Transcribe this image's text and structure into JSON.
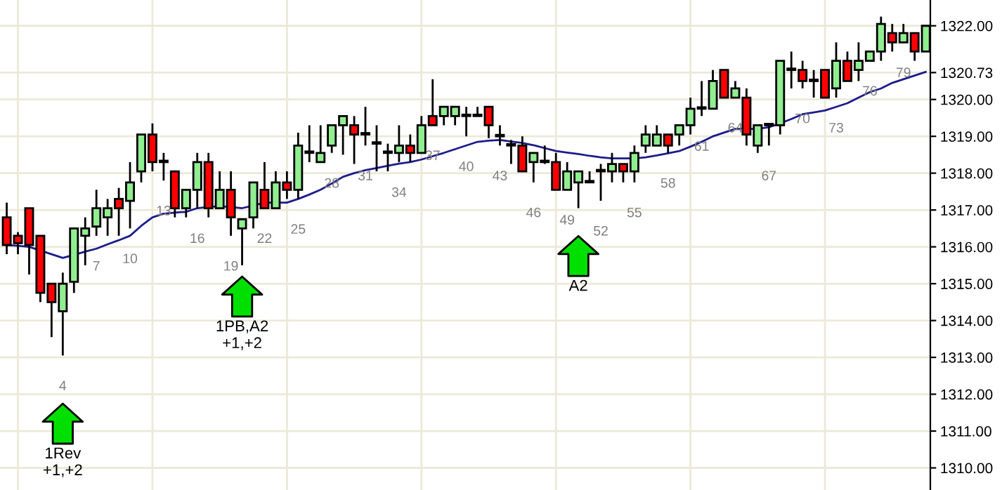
{
  "chart_data": {
    "type": "candlestick",
    "categories": [
      null,
      null,
      null,
      null,
      null,
      "4",
      null,
      null,
      "7",
      null,
      null,
      "10",
      null,
      null,
      "13",
      null,
      null,
      "16",
      null,
      null,
      "19",
      null,
      null,
      "22",
      null,
      null,
      "25",
      null,
      null,
      "28",
      null,
      null,
      "31",
      null,
      null,
      "34",
      null,
      null,
      "37",
      null,
      null,
      "40",
      null,
      null,
      "43",
      null,
      null,
      "46",
      null,
      null,
      "49",
      null,
      null,
      "52",
      null,
      null,
      "55",
      null,
      null,
      "58",
      null,
      null,
      "61",
      null,
      null,
      "64",
      null,
      null,
      "67",
      null,
      null,
      "70",
      null,
      null,
      "73",
      null,
      null,
      "76",
      null,
      null,
      "79",
      null,
      null
    ],
    "ohlc": [
      [
        1316.8,
        1317.2,
        1315.8,
        1316.05
      ],
      [
        1316.3,
        1316.4,
        1315.8,
        1316.1
      ],
      [
        1317.05,
        1317.05,
        1315.25,
        1316.05
      ],
      [
        1316.3,
        1316.3,
        1314.5,
        1314.75
      ],
      [
        1315.0,
        1315.0,
        1313.55,
        1314.5
      ],
      [
        1314.25,
        1315.3,
        1313.05,
        1315.0
      ],
      [
        1315.05,
        1316.5,
        1314.75,
        1316.5
      ],
      [
        1316.3,
        1316.8,
        1315.5,
        1316.5
      ],
      [
        1316.55,
        1317.55,
        1316.3,
        1317.05
      ],
      [
        1316.8,
        1317.3,
        1316.3,
        1317.05
      ],
      [
        1317.3,
        1317.6,
        1316.3,
        1317.05
      ],
      [
        1317.25,
        1318.3,
        1316.5,
        1317.75
      ],
      [
        1318.05,
        1319.05,
        1317.75,
        1319.05
      ],
      [
        1319.05,
        1319.35,
        1318.05,
        1318.3
      ],
      [
        1318.3,
        1318.55,
        1317.8,
        1318.3
      ],
      [
        1318.05,
        1318.05,
        1316.8,
        1317.05
      ],
      [
        1317.05,
        1317.55,
        1316.8,
        1317.55
      ],
      [
        1317.55,
        1318.55,
        1317.05,
        1318.3
      ],
      [
        1318.3,
        1318.55,
        1316.8,
        1317.05
      ],
      [
        1317.05,
        1318.05,
        1317.05,
        1317.55
      ],
      [
        1317.55,
        1318.05,
        1316.3,
        1316.8
      ],
      [
        1316.5,
        1316.75,
        1315.5,
        1316.75
      ],
      [
        1316.8,
        1317.75,
        1316.5,
        1317.75
      ],
      [
        1317.55,
        1318.3,
        1317.05,
        1317.05
      ],
      [
        1317.05,
        1318.05,
        1317.05,
        1317.75
      ],
      [
        1317.75,
        1318.05,
        1317.3,
        1317.55
      ],
      [
        1317.55,
        1319.1,
        1317.3,
        1318.75
      ],
      [
        1318.55,
        1319.3,
        1318.3,
        1318.55
      ],
      [
        1318.3,
        1319.3,
        1318.3,
        1318.55
      ],
      [
        1318.75,
        1319.3,
        1318.55,
        1319.3
      ],
      [
        1319.3,
        1319.55,
        1318.5,
        1319.55
      ],
      [
        1319.3,
        1319.55,
        1318.25,
        1319.05
      ],
      [
        1319.05,
        1319.8,
        1318.75,
        1319.05
      ],
      [
        1318.8,
        1319.3,
        1318.05,
        1318.8
      ],
      [
        1318.55,
        1318.8,
        1318.05,
        1318.55
      ],
      [
        1318.55,
        1319.3,
        1318.3,
        1318.75
      ],
      [
        1318.75,
        1319.05,
        1318.3,
        1318.55
      ],
      [
        1318.55,
        1319.55,
        1318.55,
        1319.3
      ],
      [
        1319.55,
        1320.55,
        1319.3,
        1319.3
      ],
      [
        1319.55,
        1319.8,
        1319.3,
        1319.8
      ],
      [
        1319.55,
        1319.8,
        1319.3,
        1319.8
      ],
      [
        1319.55,
        1319.8,
        1319.0,
        1319.55
      ],
      [
        1319.55,
        1319.8,
        1319.55,
        1319.55
      ],
      [
        1319.8,
        1319.8,
        1318.95,
        1319.3
      ],
      [
        1319.0,
        1319.3,
        1318.75,
        1319.0
      ],
      [
        1318.75,
        1318.9,
        1318.25,
        1318.75
      ],
      [
        1318.75,
        1319.0,
        1318.05,
        1318.05
      ],
      [
        1318.3,
        1318.55,
        1317.75,
        1318.55
      ],
      [
        1318.3,
        1318.75,
        1318.25,
        1318.3
      ],
      [
        1318.3,
        1318.55,
        1317.55,
        1317.55
      ],
      [
        1317.55,
        1318.3,
        1317.55,
        1318.05
      ],
      [
        1317.75,
        1318.05,
        1317.05,
        1318.05
      ],
      [
        1317.75,
        1318.05,
        1317.75,
        1317.75
      ],
      [
        1318.05,
        1318.25,
        1317.25,
        1318.05
      ],
      [
        1318.05,
        1318.55,
        1317.75,
        1318.25
      ],
      [
        1318.25,
        1318.25,
        1317.75,
        1318.05
      ],
      [
        1318.05,
        1318.75,
        1317.75,
        1318.55
      ],
      [
        1318.75,
        1319.3,
        1318.55,
        1319.05
      ],
      [
        1318.75,
        1319.3,
        1318.75,
        1319.05
      ],
      [
        1319.05,
        1319.05,
        1318.55,
        1318.75
      ],
      [
        1319.05,
        1319.3,
        1318.75,
        1319.3
      ],
      [
        1319.3,
        1320.05,
        1319.05,
        1319.75
      ],
      [
        1319.75,
        1320.5,
        1319.55,
        1319.75
      ],
      [
        1319.75,
        1320.8,
        1319.75,
        1320.5
      ],
      [
        1320.8,
        1320.8,
        1320.05,
        1320.05
      ],
      [
        1320.05,
        1320.5,
        1320.05,
        1320.3
      ],
      [
        1320.05,
        1320.3,
        1318.75,
        1319.05
      ],
      [
        1318.75,
        1319.3,
        1318.55,
        1319.3
      ],
      [
        1319.3,
        1319.3,
        1318.75,
        1319.3
      ],
      [
        1319.3,
        1321.05,
        1319.05,
        1321.05
      ],
      [
        1320.8,
        1321.3,
        1320.3,
        1320.8
      ],
      [
        1320.8,
        1321.05,
        1320.3,
        1320.5
      ],
      [
        1320.5,
        1320.8,
        1320.05,
        1320.5
      ],
      [
        1320.8,
        1320.8,
        1320.05,
        1320.05
      ],
      [
        1320.3,
        1321.55,
        1320.05,
        1321.05
      ],
      [
        1321.05,
        1321.3,
        1320.5,
        1320.5
      ],
      [
        1320.8,
        1321.55,
        1320.5,
        1321.05
      ],
      [
        1321.05,
        1321.3,
        1321.05,
        1321.3
      ],
      [
        1321.3,
        1322.25,
        1321.05,
        1322.05
      ],
      [
        1321.8,
        1322.05,
        1321.3,
        1321.55
      ],
      [
        1321.55,
        1322.05,
        1321.55,
        1321.8
      ],
      [
        1321.8,
        1321.8,
        1321.05,
        1321.3
      ],
      [
        1321.3,
        1322.0,
        1321.3,
        1322.0
      ]
    ],
    "colors": [
      "#ff0000",
      "#ff0000",
      "#ff0000",
      "#ff0000",
      "#ff0000",
      "#90ee90",
      "#90ee90",
      "#90ee90",
      "#90ee90",
      "#90ee90",
      "#ff0000",
      "#90ee90",
      "#90ee90",
      "#ff0000",
      "#000000",
      "#ff0000",
      "#90ee90",
      "#90ee90",
      "#ff0000",
      "#90ee90",
      "#ff0000",
      "#90ee90",
      "#90ee90",
      "#ff0000",
      "#90ee90",
      "#ff0000",
      "#90ee90",
      "#000000",
      "#90ee90",
      "#90ee90",
      "#90ee90",
      "#ff0000",
      "#000000",
      "#000000",
      "#000000",
      "#90ee90",
      "#ff0000",
      "#90ee90",
      "#ff0000",
      "#90ee90",
      "#90ee90",
      "#000000",
      "#000000",
      "#ff0000",
      "#000000",
      "#000000",
      "#ff0000",
      "#90ee90",
      "#000000",
      "#ff0000",
      "#90ee90",
      "#90ee90",
      "#000000",
      "#000000",
      "#90ee90",
      "#ff0000",
      "#90ee90",
      "#90ee90",
      "#90ee90",
      "#ff0000",
      "#90ee90",
      "#90ee90",
      "#000000",
      "#90ee90",
      "#ff0000",
      "#90ee90",
      "#ff0000",
      "#90ee90",
      "#000000",
      "#90ee90",
      "#000000",
      "#ff0000",
      "#000000",
      "#ff0000",
      "#90ee90",
      "#ff0000",
      "#90ee90",
      "#90ee90",
      "#90ee90",
      "#ff0000",
      "#90ee90",
      "#ff0000",
      "#90ee90"
    ],
    "series": [
      {
        "type": "line",
        "color": "#1c1c8c",
        "values": [
          1316.05,
          1316.03,
          1316.0,
          1315.9,
          1315.8,
          1315.7,
          1315.78,
          1315.87,
          1315.95,
          1316.07,
          1316.18,
          1316.3,
          1316.57,
          1316.8,
          1316.9,
          1316.93,
          1316.95,
          1317.05,
          1317.08,
          1317.1,
          1317.08,
          1317.05,
          1317.12,
          1317.2,
          1317.2,
          1317.2,
          1317.3,
          1317.42,
          1317.55,
          1317.72,
          1317.9,
          1318.0,
          1318.08,
          1318.14,
          1318.2,
          1318.26,
          1318.3,
          1318.37,
          1318.46,
          1318.55,
          1318.65,
          1318.75,
          1318.85,
          1318.88,
          1318.9,
          1318.86,
          1318.82,
          1318.76,
          1318.68,
          1318.6,
          1318.56,
          1318.52,
          1318.47,
          1318.43,
          1318.4,
          1318.4,
          1318.4,
          1318.43,
          1318.48,
          1318.54,
          1318.6,
          1318.72,
          1318.85,
          1319.0,
          1319.1,
          1319.2,
          1319.2,
          1319.2,
          1319.25,
          1319.35,
          1319.47,
          1319.6,
          1319.65,
          1319.7,
          1319.8,
          1319.9,
          1320.05,
          1320.2,
          1320.3,
          1320.45,
          1320.55,
          1320.65,
          1320.75
        ]
      },
      {
        "type": "scatter",
        "color": "#00e000",
        "marker": "triangle",
        "values": [
          null,
          null,
          null,
          null,
          null,
          1311.2,
          null,
          null,
          null,
          null,
          null,
          null,
          null,
          null,
          null,
          null,
          null,
          null,
          null,
          null,
          null,
          1314.65,
          null,
          null,
          null,
          null,
          null,
          null,
          null,
          null,
          null,
          null,
          null,
          null,
          null,
          null,
          null,
          null,
          null,
          null,
          null,
          null,
          null,
          null,
          null,
          null,
          null,
          null,
          null,
          null,
          null,
          1315.75,
          null,
          null,
          null,
          null,
          null,
          null,
          null,
          null,
          null,
          null,
          null,
          null,
          null,
          null,
          null,
          null,
          null,
          null,
          null,
          null,
          null,
          null,
          null,
          null,
          null,
          null,
          null,
          null,
          null,
          null,
          null
        ],
        "value_labels": [
          null,
          null,
          null,
          null,
          null,
          "1Rev\n+1,+2",
          null,
          null,
          null,
          null,
          null,
          null,
          null,
          null,
          null,
          null,
          null,
          null,
          null,
          null,
          null,
          "1PB,A2\n+1,+2",
          null,
          null,
          null,
          null,
          null,
          null,
          null,
          null,
          null,
          null,
          null,
          null,
          null,
          null,
          null,
          null,
          null,
          null,
          null,
          null,
          null,
          null,
          null,
          null,
          null,
          null,
          null,
          null,
          null,
          "A2",
          null,
          null,
          null,
          null,
          null,
          null,
          null,
          null,
          null,
          null,
          null,
          null,
          null,
          null,
          null,
          null,
          null,
          null,
          null,
          null,
          null,
          null,
          null,
          null,
          null,
          null,
          null,
          null,
          null,
          null,
          null
        ]
      }
    ],
    "ylim": [
      1309.4,
      1322.7
    ],
    "yticks": [
      {
        "value": 1310,
        "label": "1310.00"
      },
      {
        "value": 1311,
        "label": "1311.00"
      },
      {
        "value": 1312,
        "label": "1312.00"
      },
      {
        "value": 1313,
        "label": "1313.00"
      },
      {
        "value": 1314,
        "label": "1314.00"
      },
      {
        "value": 1315,
        "label": "1315.00"
      },
      {
        "value": 1316,
        "label": "1316.00"
      },
      {
        "value": 1317,
        "label": "1317.00"
      },
      {
        "value": 1318,
        "label": "1318.00"
      },
      {
        "value": 1319,
        "label": "1319.00"
      },
      {
        "value": 1320,
        "label": "1320.00"
      },
      {
        "value": 1320.73,
        "label": "1320.73"
      },
      {
        "value": 1322,
        "label": "1322.00"
      }
    ],
    "grid": true
  }
}
